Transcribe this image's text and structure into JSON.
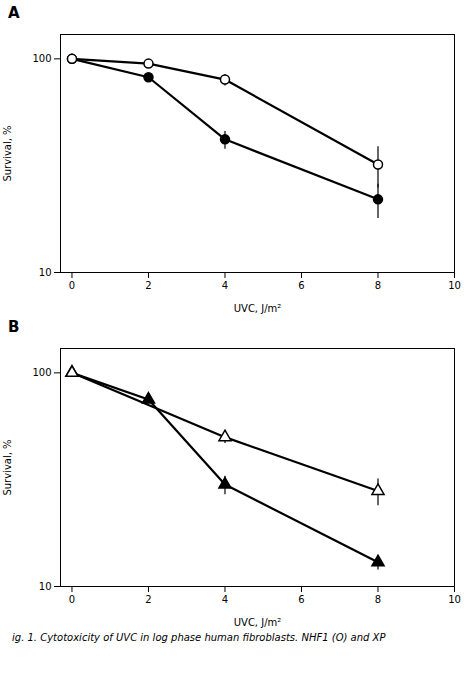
{
  "chart_data": [
    {
      "type": "line",
      "title": "A",
      "xlabel": "UVC, J/m²",
      "ylabel": "Survival, %",
      "log": "y",
      "xlim": [
        -0.3,
        10
      ],
      "xticks": [
        0,
        2,
        4,
        6,
        8,
        10
      ],
      "ylim": [
        10,
        130
      ],
      "yticks": [
        10,
        100
      ],
      "series": [
        {
          "color": "black",
          "marker": "circle",
          "x": [
            0,
            2,
            4,
            8
          ],
          "values": [
            100,
            82,
            42,
            22
          ],
          "yerr": [
            0,
            3,
            4,
            4
          ]
        },
        {
          "color": "black",
          "marker": "circle_open",
          "x": [
            0,
            2,
            4,
            8
          ],
          "values": [
            100,
            95,
            80,
            32
          ],
          "yerr": [
            0,
            3,
            5,
            7
          ]
        }
      ]
    },
    {
      "type": "line",
      "title": "B",
      "xlabel": "UVC, J/m²",
      "ylabel": "Survival, %",
      "log": "y",
      "xlim": [
        -0.3,
        10
      ],
      "xticks": [
        0,
        2,
        4,
        6,
        8,
        10
      ],
      "ylim": [
        10,
        130
      ],
      "yticks": [
        10,
        100
      ],
      "series": [
        {
          "color": "black",
          "marker": "triangle",
          "x": [
            0,
            2,
            4,
            8
          ],
          "values": [
            100,
            75,
            30,
            13
          ],
          "yerr": [
            0,
            3,
            3,
            1
          ]
        },
        {
          "color": "black",
          "marker": "triangle_open",
          "x": [
            0,
            4,
            8
          ],
          "values": [
            100,
            50,
            28
          ],
          "yerr": [
            0,
            3,
            4
          ]
        }
      ]
    }
  ],
  "caption": "ig. 1. Cytotoxicity of UVC in log phase human fibroblasts. NHF1 (O) and XP"
}
